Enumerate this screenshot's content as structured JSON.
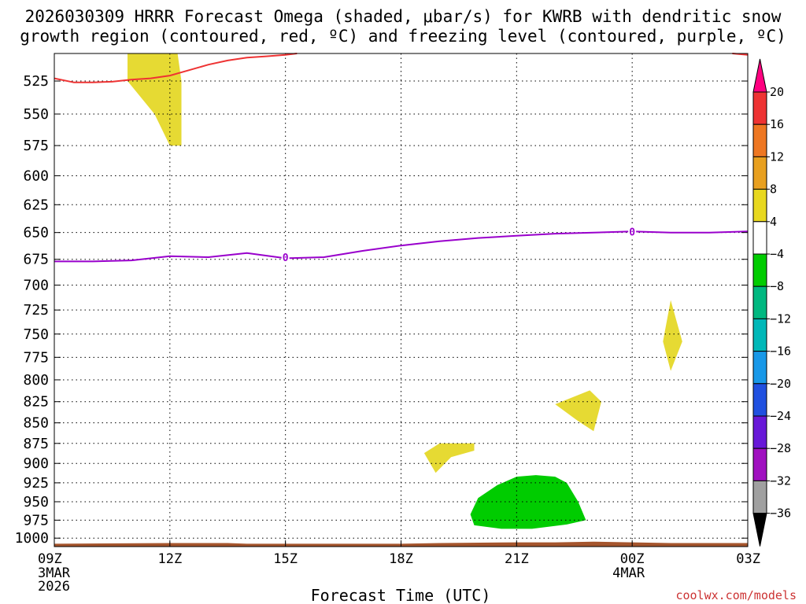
{
  "title_line1": "2026030309 HRRR Forecast Omega (shaded, μbar/s) for KWRB with dendritic snow",
  "title_line2": "growth region (contoured, red, ºC) and freezing level (contoured, purple, ºC)",
  "credit": "coolwx.com/models",
  "chart_data": {
    "type": "contour",
    "title": "2026030309 HRRR Forecast Omega (shaded, μbar/s) for KWRB with dendritic snow growth region (contoured, red, ºC) and freezing level (contoured, purple, ºC)",
    "xlabel": "Forecast Time (UTC)",
    "ylabel": "",
    "x_unit": "forecast hour from 2026030309",
    "xlim": [
      0,
      18
    ],
    "ylim": [
      1012,
      505
    ],
    "y_scale": "log-pressure",
    "grid": true,
    "x_ticks": [
      {
        "x": 0,
        "label": "09Z",
        "sub": [
          "3MAR",
          "2026"
        ]
      },
      {
        "x": 3,
        "label": "12Z",
        "sub": []
      },
      {
        "x": 6,
        "label": "15Z",
        "sub": []
      },
      {
        "x": 9,
        "label": "18Z",
        "sub": []
      },
      {
        "x": 12,
        "label": "21Z",
        "sub": []
      },
      {
        "x": 15,
        "label": "00Z",
        "sub": [
          "4MAR"
        ]
      },
      {
        "x": 18,
        "label": "03Z",
        "sub": []
      }
    ],
    "y_ticks": [
      525,
      550,
      575,
      600,
      625,
      650,
      675,
      700,
      725,
      750,
      775,
      800,
      825,
      850,
      875,
      900,
      925,
      950,
      975,
      1000
    ],
    "colorbar": {
      "levels": [
        "20",
        "16",
        "12",
        "8",
        "4",
        "−4",
        "−8",
        "−12",
        "−16",
        "−20",
        "−24",
        "−28",
        "−32",
        "−36"
      ],
      "colors": [
        "#ff0080",
        "#ee3333",
        "#ee7722",
        "#e8a020",
        "#e8d820",
        "#ffffff",
        "#00cc00",
        "#00b880",
        "#00b8b8",
        "#1898e8",
        "#2050e0",
        "#6818d8",
        "#a010c0",
        "#a0a0a0",
        "#000000"
      ]
    },
    "shaded_regions": [
      {
        "name": "yellow-12z-upper",
        "color": "#e6da33",
        "points": [
          [
            1.9,
            505
          ],
          [
            3.2,
            505
          ],
          [
            3.3,
            525
          ],
          [
            3.3,
            575
          ],
          [
            3.0,
            575
          ],
          [
            2.6,
            550
          ],
          [
            1.9,
            525
          ]
        ]
      },
      {
        "name": "yellow-01z",
        "color": "#e6da33",
        "points": [
          [
            16.0,
            715
          ],
          [
            16.3,
            758
          ],
          [
            16.0,
            790
          ],
          [
            15.8,
            758
          ]
        ]
      },
      {
        "name": "yellow-23z",
        "color": "#e6da33",
        "points": [
          [
            13.0,
            828
          ],
          [
            13.9,
            812
          ],
          [
            14.2,
            825
          ],
          [
            14.0,
            860
          ],
          [
            13.6,
            848
          ]
        ]
      },
      {
        "name": "yellow-19z",
        "color": "#e6da33",
        "points": [
          [
            9.6,
            887
          ],
          [
            10.0,
            875
          ],
          [
            10.9,
            875
          ],
          [
            10.9,
            884
          ],
          [
            10.3,
            892
          ],
          [
            9.9,
            912
          ]
        ]
      },
      {
        "name": "green-22z",
        "color": "#00cc00",
        "points": [
          [
            10.8,
            967
          ],
          [
            11.0,
            945
          ],
          [
            11.5,
            928
          ],
          [
            12.0,
            917
          ],
          [
            12.5,
            915
          ],
          [
            13.0,
            917
          ],
          [
            13.3,
            925
          ],
          [
            13.6,
            950
          ],
          [
            13.8,
            975
          ],
          [
            13.3,
            981
          ],
          [
            12.4,
            987
          ],
          [
            11.6,
            987
          ],
          [
            10.9,
            982
          ]
        ]
      }
    ],
    "terrain": {
      "color": "#a5552d",
      "points": [
        [
          0,
          1008
        ],
        [
          3,
          1007
        ],
        [
          4.5,
          1007
        ],
        [
          5,
          1008
        ],
        [
          9,
          1008
        ],
        [
          10,
          1007
        ],
        [
          12,
          1006
        ],
        [
          13,
          1006
        ],
        [
          14,
          1005
        ],
        [
          15,
          1006
        ],
        [
          16,
          1007
        ],
        [
          18,
          1007
        ]
      ]
    },
    "series": [
      {
        "color": "#ee3333",
        "x": [
          0,
          0.5,
          1,
          1.5,
          2,
          2.5,
          3,
          3.5,
          4,
          4.5,
          5,
          5.5,
          6,
          6.3
        ],
        "y": [
          523,
          526,
          526,
          525.5,
          524,
          523,
          521,
          517,
          513,
          510,
          508,
          507,
          506,
          505
        ]
      },
      {
        "color": "#ee3333",
        "x": [
          17.6,
          18
        ],
        "y": [
          505,
          506
        ]
      },
      {
        "color": "#9900cc",
        "x": [
          0,
          1,
          2,
          3,
          4,
          5,
          6,
          7,
          8,
          9,
          10,
          11,
          12,
          13,
          14,
          15,
          16,
          17,
          18
        ],
        "y": [
          677,
          677,
          676,
          672,
          673,
          669,
          674,
          673,
          667,
          662,
          658,
          655,
          653,
          651,
          650,
          649,
          650,
          650,
          649
        ]
      }
    ],
    "contour_labels": [
      {
        "x": 6,
        "y": 673,
        "text": "0"
      },
      {
        "x": 15,
        "y": 649,
        "text": "0"
      }
    ]
  }
}
